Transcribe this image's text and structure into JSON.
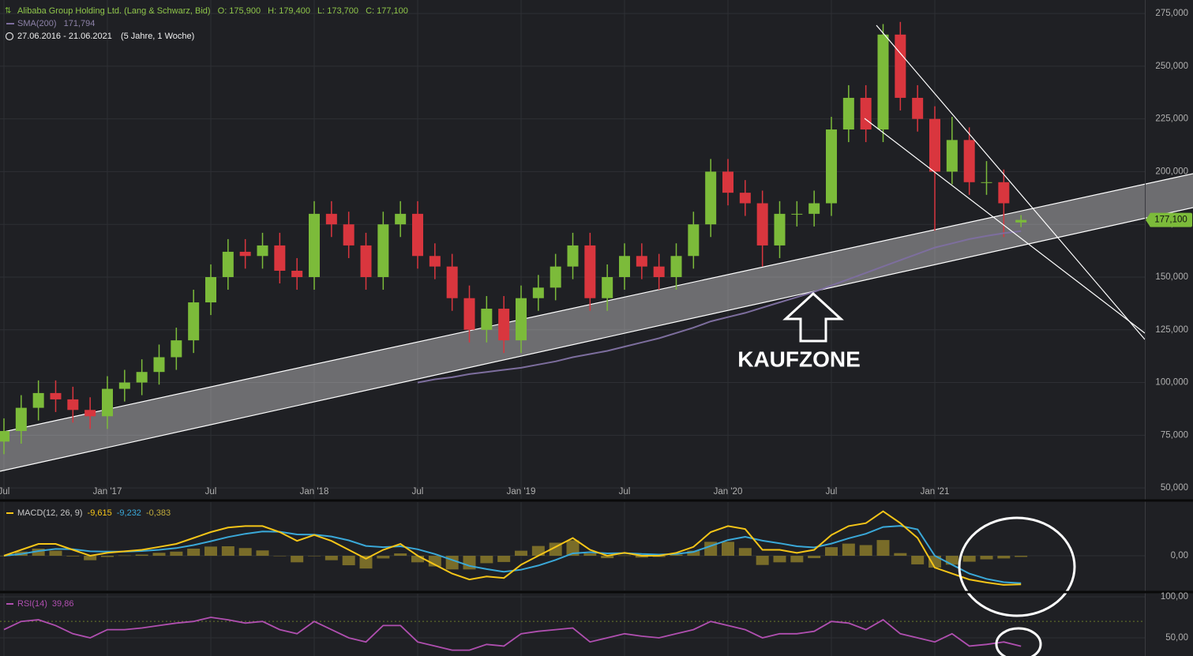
{
  "header": {
    "title": "Alibaba Group Holding Ltd. (Lang & Schwarz, Bid)",
    "open": "O: 175,900",
    "high": "H: 179,400",
    "low": "L: 173,700",
    "close": "C: 177,100",
    "sma_label": "SMA(200)",
    "sma_value": "171,794",
    "range": "27.06.2016 - 21.06.2021",
    "period": "(5 Jahre, 1 Woche)"
  },
  "annotation": "KAUFZONE",
  "chart_data": [
    {
      "type": "candlestick",
      "x": [
        "2016-07",
        "2016-08",
        "2016-09",
        "2016-10",
        "2016-11",
        "2016-12",
        "2017-01",
        "2017-02",
        "2017-03",
        "2017-04",
        "2017-05",
        "2017-06",
        "2017-07",
        "2017-08",
        "2017-09",
        "2017-10",
        "2017-11",
        "2017-12",
        "2018-01",
        "2018-02",
        "2018-03",
        "2018-04",
        "2018-05",
        "2018-06",
        "2018-07",
        "2018-08",
        "2018-09",
        "2018-10",
        "2018-11",
        "2018-12",
        "2019-01",
        "2019-02",
        "2019-03",
        "2019-04",
        "2019-05",
        "2019-06",
        "2019-07",
        "2019-08",
        "2019-09",
        "2019-10",
        "2019-11",
        "2019-12",
        "2020-01",
        "2020-02",
        "2020-03",
        "2020-04",
        "2020-05",
        "2020-06",
        "2020-07",
        "2020-08",
        "2020-09",
        "2020-10",
        "2020-11",
        "2020-12",
        "2021-01",
        "2021-02",
        "2021-03",
        "2021-04",
        "2021-05",
        "2021-06"
      ],
      "open": [
        72,
        77,
        88,
        95,
        92,
        87,
        84,
        97,
        100,
        105,
        112,
        120,
        138,
        150,
        162,
        160,
        165,
        153,
        150,
        180,
        175,
        165,
        150,
        175,
        180,
        160,
        155,
        140,
        125,
        135,
        120,
        140,
        145,
        155,
        165,
        140,
        150,
        160,
        155,
        150,
        160,
        175,
        200,
        190,
        185,
        165,
        180,
        180,
        185,
        220,
        235,
        220,
        265,
        235,
        225,
        200,
        215,
        195,
        195,
        175.9
      ],
      "high": [
        83,
        94,
        101,
        101,
        98,
        93,
        103,
        106,
        111,
        118,
        126,
        144,
        156,
        168,
        168,
        171,
        171,
        159,
        186,
        186,
        181,
        171,
        181,
        186,
        186,
        166,
        161,
        146,
        141,
        141,
        146,
        151,
        161,
        171,
        171,
        156,
        166,
        166,
        161,
        166,
        181,
        206,
        206,
        196,
        191,
        186,
        186,
        191,
        226,
        241,
        241,
        270,
        271,
        241,
        231,
        226,
        221,
        205,
        201,
        179.4
      ],
      "low": [
        66,
        71,
        82,
        86,
        81,
        78,
        78,
        91,
        94,
        99,
        106,
        114,
        132,
        144,
        154,
        154,
        147,
        144,
        144,
        169,
        159,
        144,
        144,
        169,
        154,
        149,
        134,
        119,
        119,
        114,
        114,
        134,
        139,
        149,
        134,
        134,
        144,
        149,
        144,
        144,
        154,
        169,
        184,
        179,
        155,
        159,
        174,
        174,
        179,
        214,
        214,
        214,
        229,
        219,
        172,
        194,
        189,
        189,
        169,
        173.7
      ],
      "close": [
        77,
        88,
        95,
        92,
        87,
        84,
        97,
        100,
        105,
        112,
        120,
        138,
        150,
        162,
        160,
        165,
        153,
        150,
        180,
        175,
        165,
        150,
        175,
        180,
        160,
        155,
        140,
        125,
        135,
        120,
        140,
        145,
        155,
        165,
        140,
        150,
        160,
        155,
        150,
        160,
        175,
        200,
        190,
        185,
        165,
        180,
        180,
        185,
        220,
        235,
        220,
        265,
        235,
        225,
        200,
        215,
        195,
        195,
        185,
        177.1
      ],
      "color_up": "#7cbb3a",
      "color_down": "#d9363e",
      "sma": {
        "color": "#7d6e9e",
        "values": [
          null,
          null,
          null,
          null,
          null,
          null,
          null,
          null,
          null,
          null,
          null,
          null,
          null,
          null,
          null,
          null,
          null,
          null,
          null,
          null,
          null,
          null,
          null,
          null,
          100,
          101.5,
          102.5,
          104,
          105,
          106,
          107,
          108.5,
          110,
          112,
          113.5,
          115,
          117,
          119,
          121,
          123.5,
          126,
          129,
          131,
          133,
          135.5,
          138,
          140.5,
          143,
          146,
          149,
          152,
          155,
          158,
          161,
          164,
          166,
          168,
          169.5,
          170.8,
          171.794
        ]
      },
      "last_label": "177,100",
      "xlim": [
        "2016-07",
        "2022-01"
      ],
      "xticks": [
        {
          "value": "2016-07",
          "label": "Jul"
        },
        {
          "value": "2017-01",
          "label": "Jan '17"
        },
        {
          "value": "2017-07",
          "label": "Jul"
        },
        {
          "value": "2018-01",
          "label": "Jan '18"
        },
        {
          "value": "2018-07",
          "label": "Jul"
        },
        {
          "value": "2019-01",
          "label": "Jan '19"
        },
        {
          "value": "2019-07",
          "label": "Jul"
        },
        {
          "value": "2020-01",
          "label": "Jan '20"
        },
        {
          "value": "2020-07",
          "label": "Jul"
        },
        {
          "value": "2021-01",
          "label": "Jan '21"
        }
      ],
      "ylim": [
        44.8,
        281.4
      ],
      "yticks": [
        {
          "value": 50,
          "label": "50,000"
        },
        {
          "value": 75,
          "label": "75,000"
        },
        {
          "value": 100,
          "label": "100,000"
        },
        {
          "value": 125,
          "label": "125,000"
        },
        {
          "value": 150,
          "label": "150,000"
        },
        {
          "value": 175,
          "label": "175,000"
        },
        {
          "value": 200,
          "label": "200,000"
        },
        {
          "value": 225,
          "label": "225,000"
        },
        {
          "value": 250,
          "label": "250,000"
        },
        {
          "value": 275,
          "label": "275,000"
        }
      ],
      "grid": true
    },
    {
      "type": "macd",
      "series": [
        {
          "name": "MACD(12, 26, 9)",
          "color": "#f5c518",
          "value_label": "-9,615",
          "values": [
            0,
            2,
            4,
            4,
            2,
            0,
            1,
            1.5,
            2,
            3,
            4,
            6,
            8,
            9.5,
            10,
            10,
            8,
            5,
            7,
            5,
            2,
            -1,
            2,
            4,
            0,
            -3,
            -6,
            -8,
            -7,
            -7.5,
            -3,
            0,
            3,
            6,
            2,
            0,
            1,
            0,
            0,
            1,
            3,
            8,
            10,
            9,
            2,
            2,
            1,
            2,
            7,
            10,
            11,
            15,
            11,
            6,
            -4,
            -6,
            -8,
            -9,
            -9.8,
            -9.615
          ]
        },
        {
          "color": "#3aa8d8",
          "value_label": "-9,232",
          "values": [
            0,
            0.6,
            1.6,
            2.3,
            2.2,
            1.5,
            1.4,
            1.4,
            1.6,
            2,
            2.6,
            3.6,
            4.9,
            6.3,
            7.4,
            8.2,
            8.1,
            7.2,
            7.1,
            6.5,
            5.2,
            3.3,
            2.9,
            3.2,
            2.2,
            0.6,
            -1.4,
            -3.4,
            -4.5,
            -5.4,
            -4.7,
            -3.3,
            -1.4,
            0.8,
            1.2,
            0.8,
            0.9,
            0.6,
            0.4,
            0.6,
            1.3,
            3.3,
            5.3,
            6.4,
            5.1,
            4.2,
            3.2,
            2.8,
            4.1,
            5.9,
            7.4,
            9.7,
            10.1,
            8.9,
            0,
            -3,
            -6,
            -7.8,
            -8.9,
            -9.232
          ]
        },
        {
          "color": "#8a7a2a",
          "value_label": "-0,383",
          "values": [
            0,
            1.4,
            2.4,
            1.7,
            -0.2,
            -1.5,
            -0.4,
            0.1,
            0.4,
            1,
            1.4,
            2.4,
            3.1,
            3.2,
            2.6,
            1.8,
            -0.1,
            -2.2,
            -0.1,
            -1.5,
            -3.2,
            -4.3,
            -0.9,
            0.8,
            -2.2,
            -3.6,
            -4.6,
            -4.6,
            -2.5,
            -2.1,
            1.7,
            3.3,
            4.4,
            5.2,
            0.8,
            -0.8,
            0.1,
            -0.6,
            -0.4,
            0.4,
            1.7,
            4.7,
            4.7,
            2.6,
            -3.1,
            -2.2,
            -2.2,
            -0.8,
            2.9,
            4.1,
            3.6,
            5.3,
            0.9,
            -2.9,
            -4,
            -3,
            -2,
            -1.2,
            -0.9,
            -0.383
          ]
        }
      ],
      "ylim": [
        -11.7,
        18.1
      ],
      "yticks": [
        {
          "value": 0,
          "label": "0,00"
        }
      ]
    },
    {
      "type": "rsi",
      "series": [
        {
          "name": "RSI(14)",
          "color": "#b04fb0",
          "value_label": "39,86",
          "values": [
            60,
            70,
            72,
            65,
            55,
            50,
            60,
            60,
            62,
            65,
            68,
            70,
            75,
            72,
            68,
            70,
            60,
            55,
            70,
            60,
            50,
            45,
            65,
            65,
            45,
            40,
            35,
            35,
            42,
            40,
            55,
            58,
            60,
            62,
            45,
            50,
            55,
            52,
            50,
            55,
            60,
            70,
            65,
            60,
            50,
            55,
            55,
            58,
            70,
            68,
            60,
            72,
            55,
            50,
            45,
            55,
            40,
            42,
            45,
            39.86
          ]
        }
      ],
      "guide": 70,
      "ylim": [
        27.9,
        103.8
      ],
      "yticks": [
        {
          "value": 50,
          "label": "50,00"
        },
        {
          "value": 100,
          "label": "100,00"
        }
      ]
    }
  ]
}
